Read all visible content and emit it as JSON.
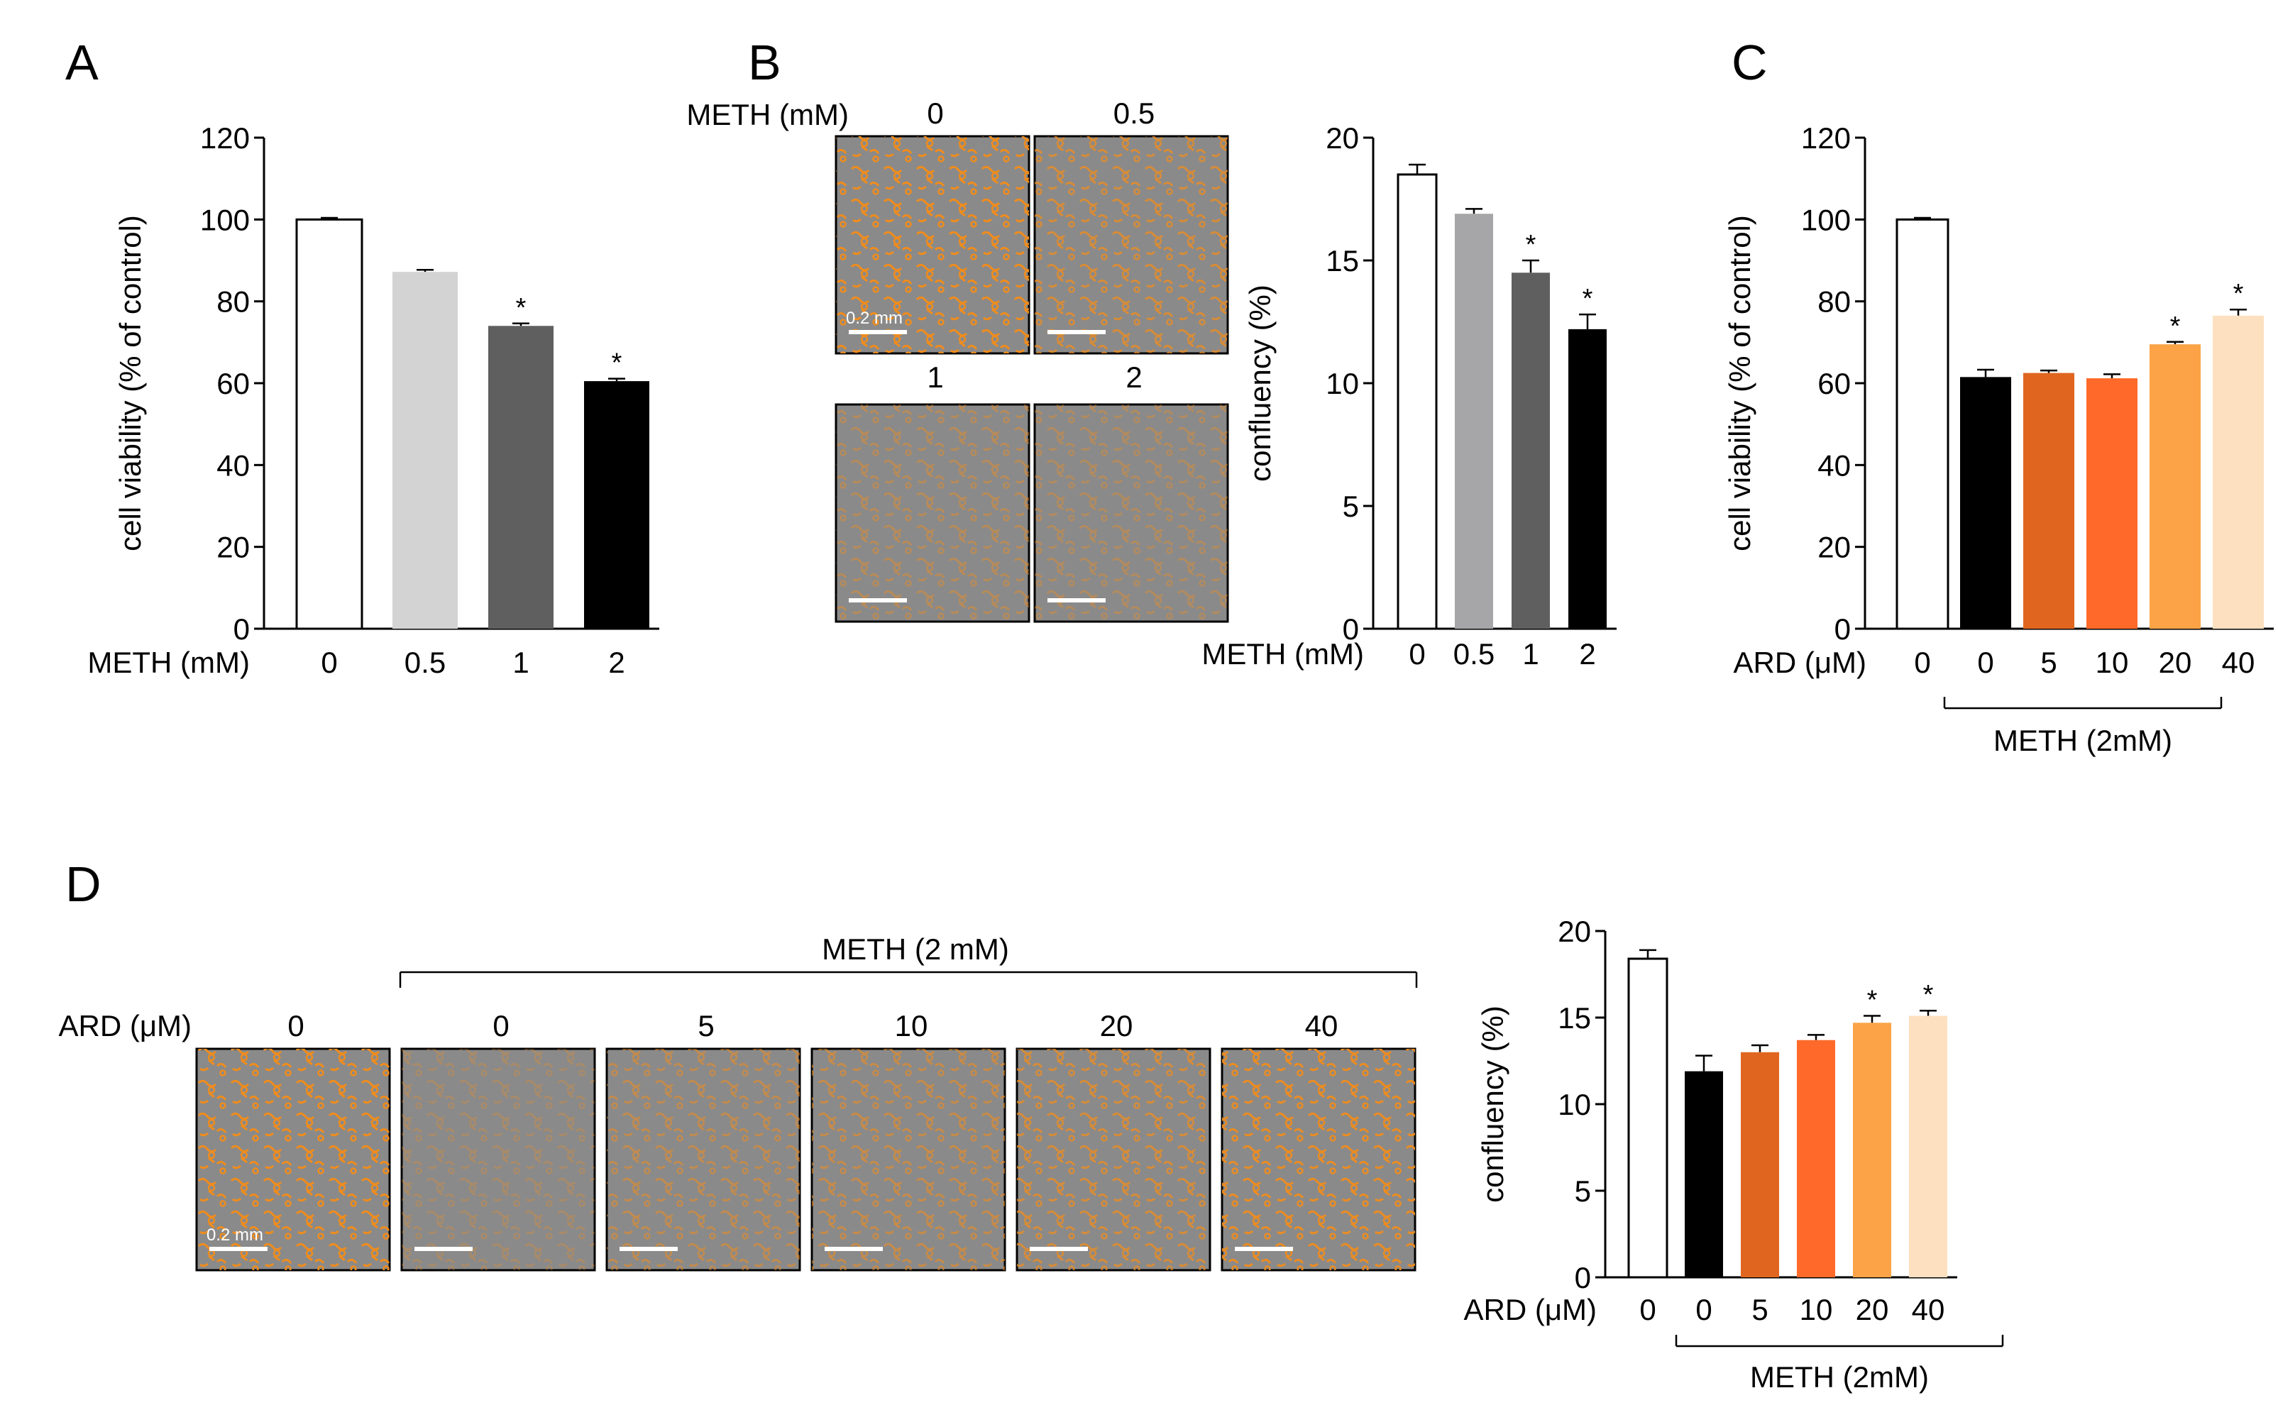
{
  "panels": {
    "A": "A",
    "B": "B",
    "C": "C",
    "D": "D"
  },
  "micrographs": {
    "B": {
      "header_label": "METH (mM)",
      "scale_label": "0.2 mm",
      "images": [
        {
          "label": "0",
          "density": 1.0
        },
        {
          "label": "0.5",
          "density": 0.75
        },
        {
          "label": "1",
          "density": 0.45
        },
        {
          "label": "2",
          "density": 0.4
        }
      ]
    },
    "D": {
      "row_label": "ARD (μM)",
      "group_label": "METH (2 mM)",
      "scale_label": "0.2 mm",
      "images": [
        {
          "label": "0",
          "density": 1.0
        },
        {
          "label": "0",
          "density": 0.3
        },
        {
          "label": "5",
          "density": 0.55
        },
        {
          "label": "10",
          "density": 0.6
        },
        {
          "label": "20",
          "density": 0.75
        },
        {
          "label": "40",
          "density": 0.95
        }
      ]
    }
  },
  "chart_data": [
    {
      "panel": "A",
      "type": "bar",
      "ylabel": "cell viability (% of control)",
      "ylim": [
        0,
        120
      ],
      "yticks": [
        0,
        20,
        40,
        60,
        80,
        100,
        120
      ],
      "xlabel_prefix": "METH (mM)",
      "categories": [
        "0",
        "0.5",
        "1",
        "2"
      ],
      "values": [
        100,
        87.2,
        74,
        60.5
      ],
      "errors": [
        0.4,
        0.5,
        0.6,
        0.6
      ],
      "significant": [
        false,
        false,
        true,
        true
      ],
      "colors": [
        "#ffffff",
        "#d3d3d3",
        "#5f5f5f",
        "#000000"
      ]
    },
    {
      "panel": "B",
      "type": "bar",
      "ylabel": "confluency (%)",
      "ylim": [
        0,
        20
      ],
      "yticks": [
        0,
        5,
        10,
        15,
        20
      ],
      "xlabel_prefix": "METH (mM)",
      "categories": [
        "0",
        "0.5",
        "1",
        "2"
      ],
      "values": [
        18.5,
        16.9,
        14.5,
        12.2
      ],
      "errors": [
        0.4,
        0.2,
        0.5,
        0.6
      ],
      "significant": [
        false,
        false,
        true,
        true
      ],
      "colors": [
        "#ffffff",
        "#a6a6a9",
        "#5f5f5f",
        "#000000"
      ]
    },
    {
      "panel": "C",
      "type": "bar",
      "ylabel": "cell viability (% of control)",
      "ylim": [
        0,
        120
      ],
      "yticks": [
        0,
        20,
        40,
        60,
        80,
        100,
        120
      ],
      "xlabel_prefix": "ARD (μM)",
      "categories": [
        "0",
        "0",
        "5",
        "10",
        "20",
        "40"
      ],
      "values": [
        100,
        61.5,
        62.5,
        61.2,
        69.5,
        76.5
      ],
      "errors": [
        0.4,
        1.8,
        0.6,
        1.0,
        0.6,
        1.5
      ],
      "significant": [
        false,
        false,
        false,
        false,
        true,
        true
      ],
      "colors": [
        "#ffffff",
        "#000000",
        "#e0661f",
        "#ff6a2a",
        "#fba346",
        "#fde0c0"
      ],
      "group_label": "METH (2mM)"
    },
    {
      "panel": "D",
      "type": "bar",
      "ylabel": "confluency (%)",
      "ylim": [
        0,
        20
      ],
      "yticks": [
        0,
        5,
        10,
        15,
        20
      ],
      "xlabel_prefix": "ARD (μM)",
      "categories": [
        "0",
        "0",
        "5",
        "10",
        "20",
        "40"
      ],
      "values": [
        18.4,
        11.9,
        13.0,
        13.7,
        14.7,
        15.1
      ],
      "errors": [
        0.5,
        0.9,
        0.4,
        0.3,
        0.4,
        0.3
      ],
      "significant": [
        false,
        false,
        false,
        false,
        true,
        true
      ],
      "colors": [
        "#ffffff",
        "#000000",
        "#e0661f",
        "#ff6a2a",
        "#fba346",
        "#fde0c0"
      ],
      "group_label": "METH (2mM)"
    }
  ]
}
